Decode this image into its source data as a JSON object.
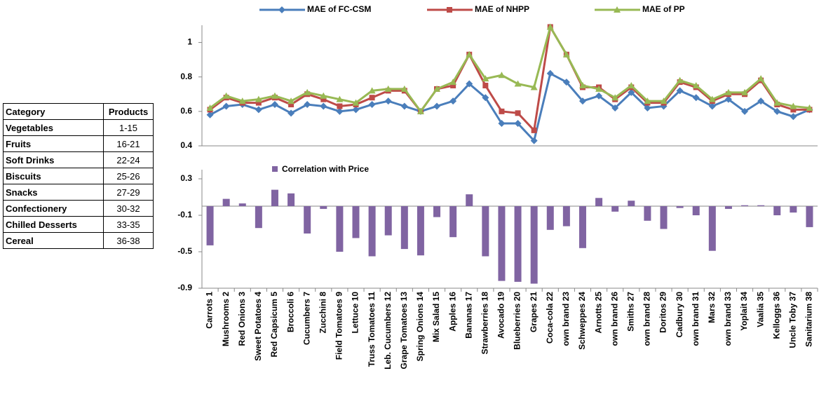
{
  "table": {
    "header": [
      "Category",
      "Products"
    ],
    "rows": [
      [
        "Vegetables",
        "1-15"
      ],
      [
        "Fruits",
        "16-21"
      ],
      [
        "Soft Drinks",
        "22-24"
      ],
      [
        "Biscuits",
        "25-26"
      ],
      [
        "Snacks",
        "27-29"
      ],
      [
        "Confectionery",
        "30-32"
      ],
      [
        "Chilled Desserts",
        "33-35"
      ],
      [
        "Cereal",
        "36-38"
      ]
    ]
  },
  "chart_data": [
    {
      "type": "line",
      "ylim": [
        0.4,
        1.1
      ],
      "yticks": [
        0.4,
        0.6,
        0.8,
        1
      ],
      "series": [
        {
          "name": "MAE of FC-CSM",
          "color": "#4a7ebb",
          "marker": "diamond",
          "values": [
            0.58,
            0.63,
            0.64,
            0.61,
            0.64,
            0.59,
            0.64,
            0.63,
            0.6,
            0.61,
            0.64,
            0.66,
            0.63,
            0.6,
            0.63,
            0.66,
            0.76,
            0.68,
            0.53,
            0.53,
            0.43,
            0.82,
            0.77,
            0.66,
            0.69,
            0.62,
            0.71,
            0.62,
            0.63,
            0.72,
            0.68,
            0.63,
            0.67,
            0.6,
            0.66,
            0.6,
            0.57,
            0.61
          ]
        },
        {
          "name": "MAE of NHPP",
          "color": "#be4b48",
          "marker": "square",
          "values": [
            0.61,
            0.68,
            0.65,
            0.65,
            0.68,
            0.64,
            0.7,
            0.67,
            0.63,
            0.64,
            0.68,
            0.72,
            0.72,
            0.6,
            0.73,
            0.75,
            0.93,
            0.75,
            0.6,
            0.59,
            0.49,
            1.09,
            0.93,
            0.74,
            0.74,
            0.67,
            0.74,
            0.65,
            0.65,
            0.77,
            0.74,
            0.66,
            0.7,
            0.7,
            0.78,
            0.64,
            0.61,
            0.61
          ]
        },
        {
          "name": "MAE of PP",
          "color": "#98b954",
          "marker": "triangle",
          "values": [
            0.62,
            0.69,
            0.66,
            0.67,
            0.69,
            0.66,
            0.71,
            0.69,
            0.67,
            0.65,
            0.72,
            0.73,
            0.73,
            0.6,
            0.73,
            0.77,
            0.93,
            0.79,
            0.81,
            0.76,
            0.74,
            1.09,
            0.93,
            0.75,
            0.73,
            0.68,
            0.75,
            0.66,
            0.66,
            0.78,
            0.75,
            0.67,
            0.71,
            0.71,
            0.79,
            0.65,
            0.63,
            0.62
          ]
        }
      ]
    },
    {
      "type": "bar",
      "ylim": [
        -0.9,
        0.4
      ],
      "yticks": [
        0.3,
        -0.1,
        -0.5,
        -0.9
      ],
      "categories": [
        "Carrots 1",
        "Mushrooms 2",
        "Red Onions 3",
        "Sweet Potatoes 4",
        "Red Capsicum 5",
        "Broccoli 6",
        "Cucumbers 7",
        "Zucchini 8",
        "Field Tomatoes 9",
        "Lettuce 10",
        "Truss Tomatoes 11",
        "Leb. Cucumbers 12",
        "Grape Tomatoes 13",
        "Spring Onions 14",
        "Mix Salad 15",
        "Apples 16",
        "Bananas 17",
        "Strawberries 18",
        "Avocado 19",
        "Blueberries 20",
        "Grapes 21",
        "Coca-cola 22",
        "own brand 23",
        "Schweppes 24",
        "Arnotts 25",
        "own brand 26",
        "Smiths 27",
        "own brand 28",
        "Doritos 29",
        "Cadbury 30",
        "own brand 31",
        "Mars 32",
        "own brand 33",
        "Yoplait 34",
        "Vaalia 35",
        "Kelloggs 36",
        "Uncle Toby 37",
        "Sanitarium 38"
      ],
      "series": [
        {
          "name": "Correlation with Price",
          "color": "#8064a2",
          "values": [
            -0.43,
            0.08,
            0.03,
            -0.24,
            0.18,
            0.14,
            -0.3,
            -0.03,
            -0.5,
            -0.35,
            -0.55,
            -0.32,
            -0.47,
            -0.54,
            -0.12,
            -0.34,
            0.13,
            -0.55,
            -0.82,
            -0.83,
            -0.85,
            -0.26,
            -0.22,
            -0.46,
            0.09,
            -0.06,
            0.06,
            -0.16,
            -0.25,
            -0.02,
            -0.1,
            -0.49,
            -0.03,
            0.01,
            0.01,
            -0.1,
            -0.07,
            -0.23
          ]
        }
      ]
    }
  ]
}
